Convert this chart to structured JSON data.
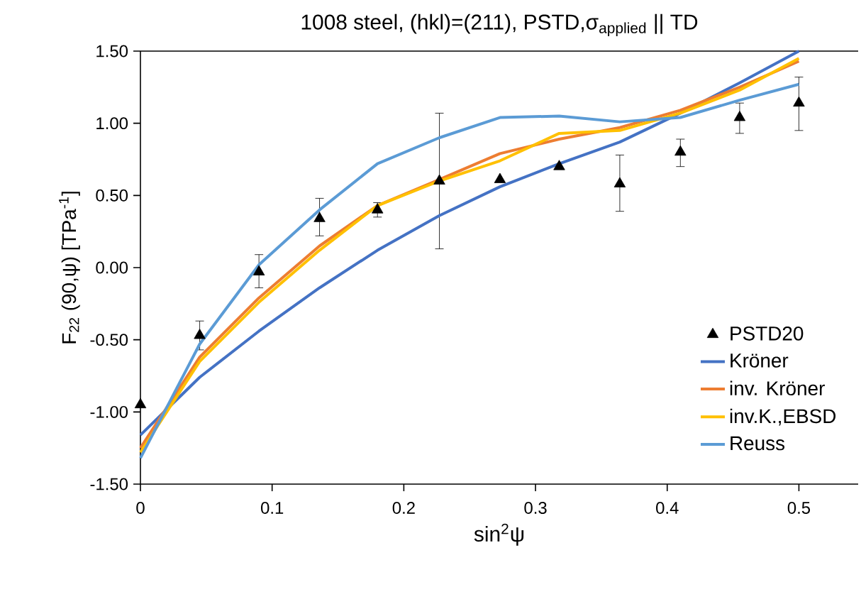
{
  "chart_data": {
    "type": "line",
    "title": "1008 steel, (hkl)=(211), PSTD,σ$_{applied}$ || TD",
    "xlabel": "sin$^{2}$ψ",
    "ylabel": "F$_{22}$ (90,ψ)   [TPa$^{-1}$]",
    "x": [
      0,
      0.045,
      0.09,
      0.136,
      0.18,
      0.227,
      0.273,
      0.318,
      0.364,
      0.41,
      0.455,
      0.5
    ],
    "series": [
      {
        "name": "PSTD20",
        "type": "scatter",
        "marker": "triangle",
        "color": "#000000",
        "values": [
          -0.95,
          -0.47,
          -0.03,
          0.34,
          0.4,
          0.6,
          0.61,
          0.7,
          0.58,
          0.8,
          1.04,
          1.14
        ],
        "errors": [
          null,
          [
            -0.57,
            -0.37
          ],
          [
            -0.14,
            0.09
          ],
          [
            0.22,
            0.48
          ],
          [
            0.35,
            0.45
          ],
          [
            0.13,
            1.07
          ],
          null,
          null,
          [
            0.39,
            0.78
          ],
          [
            0.7,
            0.89
          ],
          [
            0.93,
            1.14
          ],
          [
            0.95,
            1.32
          ]
        ]
      },
      {
        "name": "Kröner",
        "color": "#4472c4",
        "values": [
          -1.16,
          -0.76,
          -0.44,
          -0.14,
          0.12,
          0.36,
          0.56,
          0.72,
          0.87,
          1.07,
          1.28,
          1.5
        ]
      },
      {
        "name": "inv. Kröner",
        "color": "#ed7d31",
        "values": [
          -1.25,
          -0.62,
          -0.21,
          0.15,
          0.43,
          0.61,
          0.79,
          0.89,
          0.97,
          1.09,
          1.25,
          1.43
        ]
      },
      {
        "name": "inv.K.,EBSD",
        "color": "#ffc000",
        "values": [
          -1.28,
          -0.65,
          -0.24,
          0.12,
          0.43,
          0.6,
          0.74,
          0.93,
          0.95,
          1.07,
          1.23,
          1.45
        ]
      },
      {
        "name": "Reuss",
        "color": "#5b9bd5",
        "values": [
          -1.32,
          -0.53,
          0.02,
          0.4,
          0.72,
          0.9,
          1.04,
          1.05,
          1.01,
          1.04,
          1.16,
          1.27
        ]
      }
    ],
    "xlim": [
      0,
      0.545
    ],
    "xticks": [
      0,
      0.1,
      0.2,
      0.3,
      0.4,
      0.5
    ],
    "ylim": [
      -1.5,
      1.5
    ],
    "yticks": [
      {
        "value": -1.5,
        "label": "-1.50"
      },
      {
        "value": -1.0,
        "label": "-1.00"
      },
      {
        "value": -0.5,
        "label": "-0.50"
      },
      {
        "value": 0,
        "label": "0.00"
      },
      {
        "value": 0.5,
        "label": "0.50"
      },
      {
        "value": 1.0,
        "label": "1.00"
      },
      {
        "value": 1.5,
        "label": "1.50"
      }
    ],
    "grid": false,
    "legend": "bottom right",
    "marker": "none",
    "line_style": "solid"
  }
}
